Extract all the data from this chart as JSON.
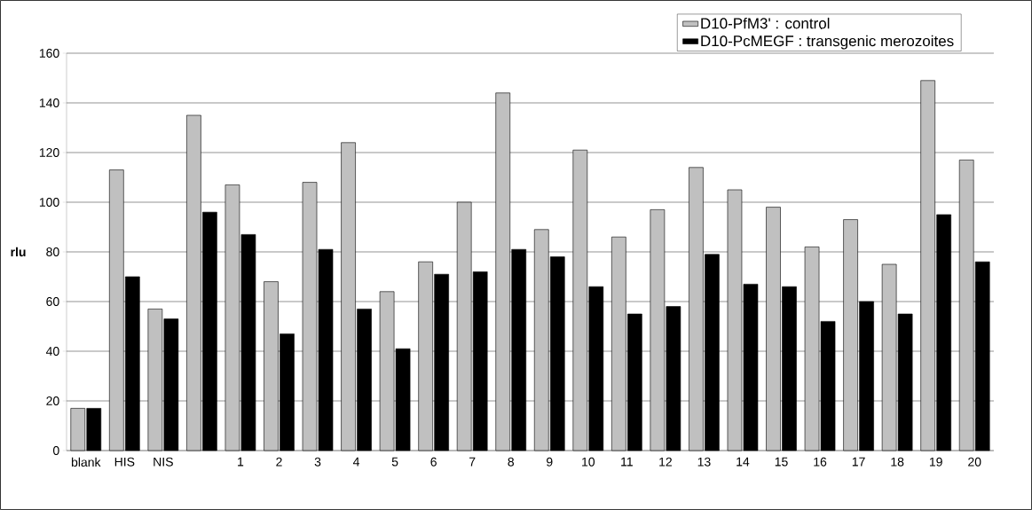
{
  "chart_data": {
    "type": "bar",
    "ylabel": "rlu",
    "categories": [
      "blank",
      "HIS",
      "NIS",
      null,
      "1",
      "2",
      "3",
      "4",
      "5",
      "6",
      "7",
      "8",
      "9",
      "10",
      "11",
      "12",
      "13",
      "14",
      "15",
      "16",
      "17",
      "18",
      "19",
      "20"
    ],
    "series": [
      {
        "name": "D10-PfM3' : control",
        "color": "#c0c0c0",
        "values": [
          17,
          113,
          57,
          135,
          107,
          68,
          108,
          124,
          64,
          76,
          100,
          144,
          89,
          121,
          86,
          97,
          114,
          105,
          98,
          82,
          93,
          75,
          149,
          117
        ]
      },
      {
        "name": "D10-PcMEGF : transgenic merozoites",
        "color": "#000000",
        "values": [
          17,
          70,
          53,
          96,
          87,
          47,
          81,
          57,
          41,
          71,
          72,
          81,
          78,
          66,
          55,
          58,
          79,
          67,
          66,
          52,
          60,
          55,
          95,
          76
        ]
      }
    ],
    "ylim": [
      0,
      160
    ],
    "yticks": [
      0,
      20,
      40,
      60,
      80,
      100,
      120,
      140,
      160
    ],
    "grid": "y",
    "legend": "top right"
  }
}
